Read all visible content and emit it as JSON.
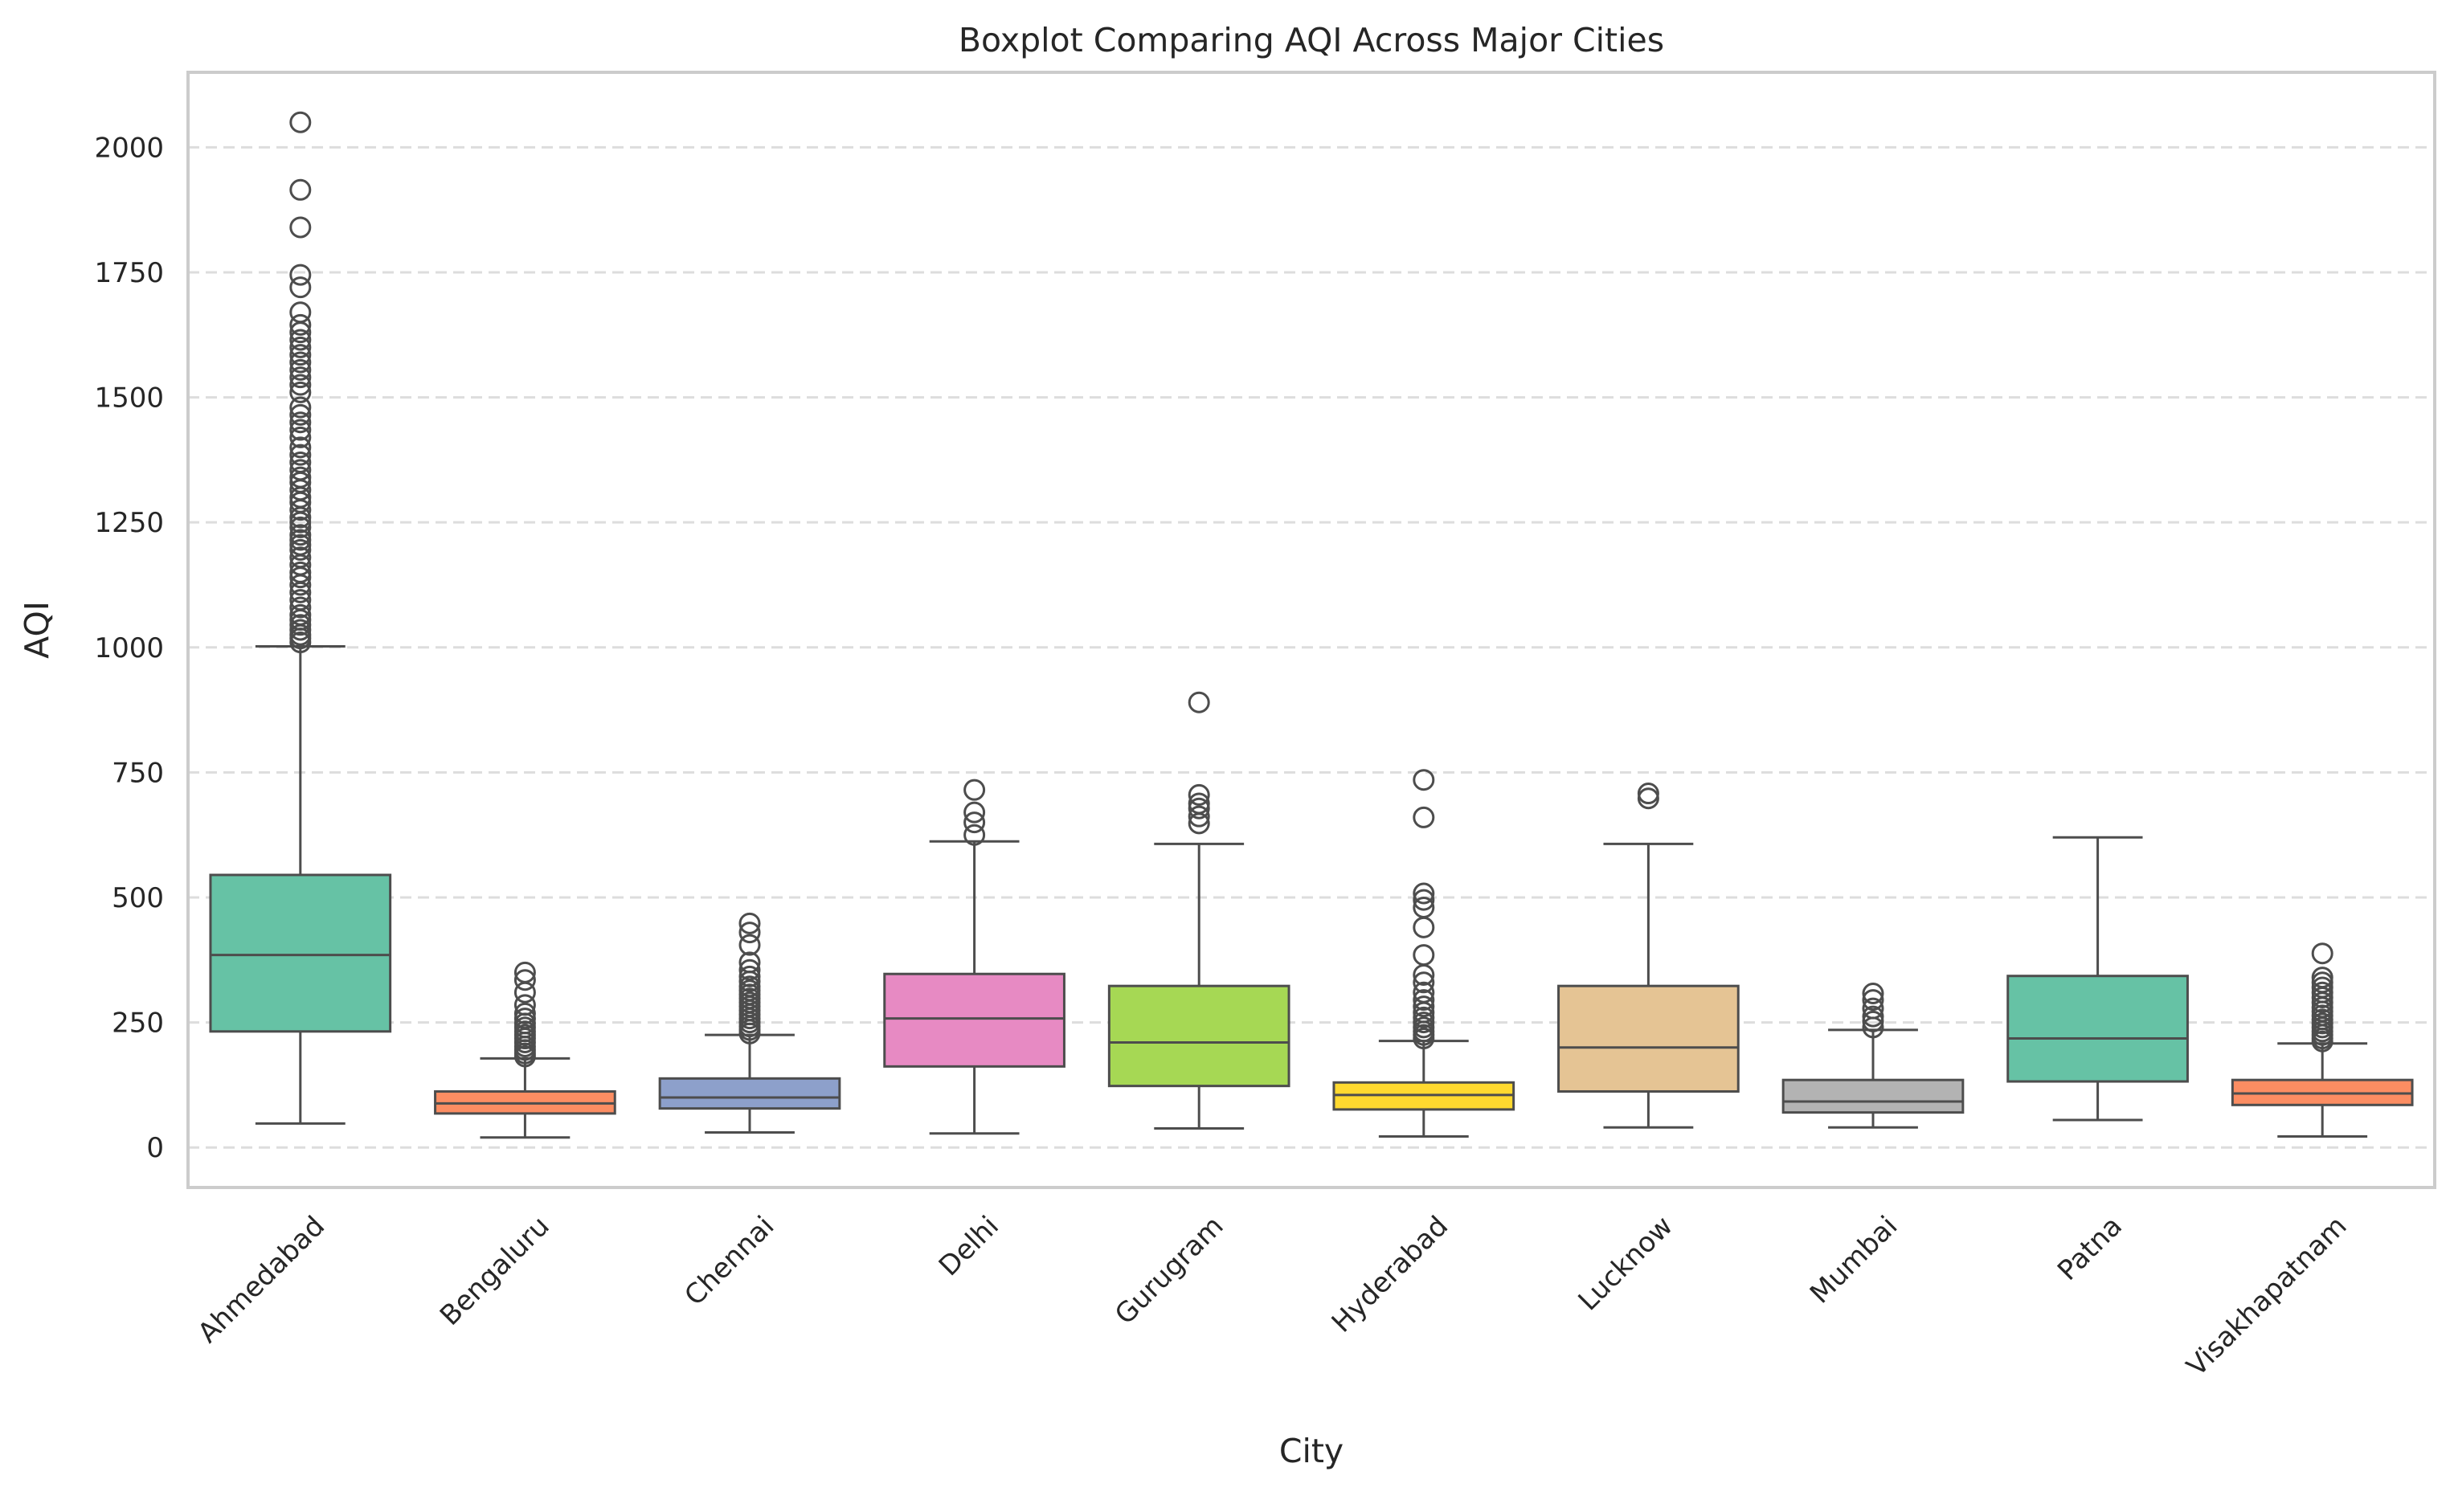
{
  "chart_data": {
    "type": "boxplot",
    "title": "Boxplot Comparing AQI Across Major Cities",
    "xlabel": "City",
    "ylabel": "AQI",
    "ylim": [
      -80,
      2150
    ],
    "yticks": [
      0,
      250,
      500,
      750,
      1000,
      1250,
      1500,
      1750,
      2000
    ],
    "grid": "y-dashed",
    "categories": [
      "Ahmedabad",
      "Bengaluru",
      "Chennai",
      "Delhi",
      "Gurugram",
      "Hyderabad",
      "Lucknow",
      "Mumbai",
      "Patna",
      "Visakhapatnam"
    ],
    "boxes": [
      {
        "city": "Ahmedabad",
        "color": "#66c2a5",
        "whisker_low": 48,
        "q1": 232,
        "median": 385,
        "q3": 545,
        "whisker_high": 1002,
        "outliers": [
          1010,
          1018,
          1025,
          1035,
          1045,
          1055,
          1065,
          1080,
          1095,
          1110,
          1125,
          1140,
          1150,
          1165,
          1180,
          1195,
          1205,
          1215,
          1225,
          1240,
          1250,
          1260,
          1275,
          1290,
          1300,
          1315,
          1330,
          1340,
          1355,
          1370,
          1385,
          1400,
          1420,
          1435,
          1450,
          1465,
          1480,
          1510,
          1525,
          1540,
          1555,
          1570,
          1585,
          1600,
          1615,
          1630,
          1645,
          1670,
          1720,
          1745,
          1840,
          1915,
          2050
        ]
      },
      {
        "city": "Bengaluru",
        "color": "#fc8d62",
        "whisker_low": 20,
        "q1": 68,
        "median": 88,
        "q3": 112,
        "whisker_high": 178,
        "outliers": [
          182,
          188,
          195,
          202,
          210,
          218,
          225,
          232,
          240,
          248,
          258,
          268,
          285,
          310,
          335,
          350
        ]
      },
      {
        "city": "Chennai",
        "color": "#8da0cb",
        "whisker_low": 30,
        "q1": 78,
        "median": 100,
        "q3": 138,
        "whisker_high": 225,
        "outliers": [
          228,
          235,
          242,
          250,
          258,
          266,
          274,
          282,
          290,
          298,
          306,
          314,
          322,
          332,
          342,
          355,
          370,
          405,
          430,
          448
        ]
      },
      {
        "city": "Delhi",
        "color": "#e78ac3",
        "whisker_low": 28,
        "q1": 162,
        "median": 258,
        "q3": 347,
        "whisker_high": 612,
        "outliers": [
          625,
          650,
          670,
          715
        ]
      },
      {
        "city": "Gurugram",
        "color": "#a6d854",
        "whisker_low": 38,
        "q1": 123,
        "median": 210,
        "q3": 323,
        "whisker_high": 607,
        "outliers": [
          648,
          662,
          678,
          688,
          705,
          890
        ]
      },
      {
        "city": "Hyderabad",
        "color": "#ffd92f",
        "whisker_low": 22,
        "q1": 76,
        "median": 105,
        "q3": 130,
        "whisker_high": 213,
        "outliers": [
          218,
          225,
          232,
          240,
          250,
          260,
          270,
          282,
          295,
          310,
          330,
          345,
          385,
          440,
          480,
          495,
          508,
          660,
          735
        ]
      },
      {
        "city": "Lucknow",
        "color": "#e5c494",
        "whisker_low": 40,
        "q1": 112,
        "median": 200,
        "q3": 323,
        "whisker_high": 607,
        "outliers": [
          698,
          708
        ]
      },
      {
        "city": "Mumbai",
        "color": "#b3b3b3",
        "whisker_low": 40,
        "q1": 70,
        "median": 92,
        "q3": 135,
        "whisker_high": 235,
        "outliers": [
          240,
          252,
          262,
          278,
          295,
          308
        ]
      },
      {
        "city": "Patna",
        "color": "#66c2a5",
        "whisker_low": 55,
        "q1": 132,
        "median": 218,
        "q3": 343,
        "whisker_high": 620,
        "outliers": []
      },
      {
        "city": "Visakhapatnam",
        "color": "#fc8d62",
        "whisker_low": 22,
        "q1": 85,
        "median": 108,
        "q3": 135,
        "whisker_high": 208,
        "outliers": [
          212,
          218,
          225,
          232,
          240,
          248,
          256,
          264,
          272,
          280,
          290,
          300,
          310,
          320,
          330,
          340,
          388
        ]
      }
    ]
  }
}
